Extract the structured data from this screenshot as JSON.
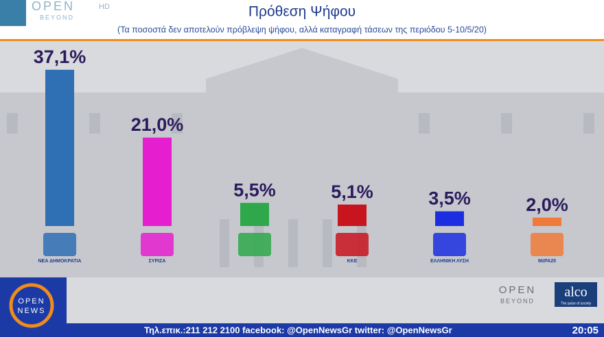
{
  "chart_data": {
    "type": "bar",
    "title": "Πρόθεση Ψήφου",
    "subtitle": "(Τα ποσοστά δεν αποτελούν πρόβλεψη ψήφου, αλλά καταγραφή τάσεων της περιόδου 5-10/5/20)",
    "categories": [
      "ΝΕΑ ΔΗΜΟΚΡΑΤΙΑ",
      "ΣΥΡΙΖΑ",
      null,
      "ΚΚΕ",
      "ΕΛΛΗΝΙΚΗ ΛΥΣΗ",
      "ΜέΡΑ25"
    ],
    "values": [
      37.1,
      21.0,
      5.5,
      5.1,
      3.5,
      2.0
    ],
    "value_labels": [
      "37,1%",
      "21,0%",
      "5,5%",
      "5,1%",
      "3,5%",
      "2,0%"
    ],
    "colors": [
      "#2f6fb3",
      "#e51fd0",
      "#2ea84a",
      "#c8141e",
      "#1b2fe0",
      "#f07a3a"
    ]
  },
  "screen": {
    "channel": "OPEN",
    "hd": "HD",
    "beyond": "BEYOND",
    "news_logo": [
      "OPEN",
      "NEWS"
    ],
    "ticker": "Τηλ.επικ.:211 212 2100 facebook: @OpenNewsGr twitter: @OpenNewsGr",
    "clock": "20:05",
    "partner_open": "OPEN",
    "partner_beyond": "BEYOND",
    "pollster": "alco",
    "pollster_tagline": "The pulse of society"
  }
}
